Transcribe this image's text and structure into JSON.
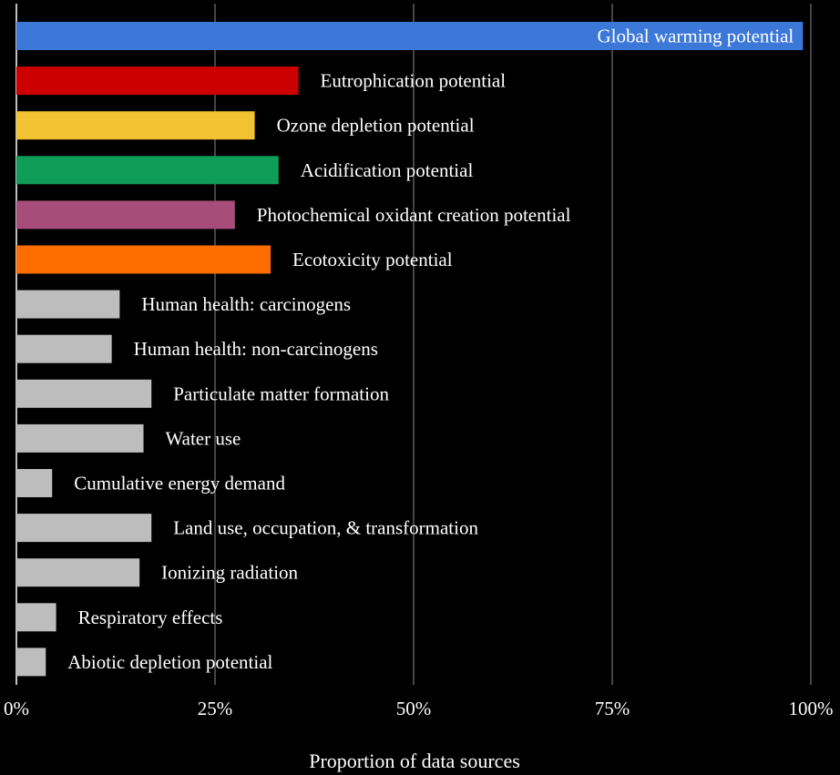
{
  "chart_data": {
    "type": "bar",
    "orientation": "horizontal",
    "title": "",
    "xlabel": "Proportion of data sources",
    "ylabel": "",
    "xlim": [
      0,
      100
    ],
    "x_ticks": [
      "0%",
      "25%",
      "50%",
      "75%",
      "100%"
    ],
    "grid": "vertical",
    "categories": [
      "Global warming potential",
      "Eutrophication potential",
      "Ozone depletion potential",
      "Acidification potential",
      "Photochemical oxidant creation potential",
      "Ecotoxicity potential",
      "Human health: carcinogens",
      "Human health: non-carcinogens",
      "Particulate matter formation",
      "Water use",
      "Cumulative energy demand",
      "Land use, occupation, & transformation",
      "Ionizing radiation",
      "Respiratory effects",
      "Abiotic depletion potential"
    ],
    "values": [
      99,
      35.5,
      30,
      33,
      27.5,
      32,
      13,
      12,
      17,
      16,
      4.5,
      17,
      15.5,
      5,
      3.7
    ],
    "colors": [
      "#3c78d8",
      "#cc0000",
      "#f1c232",
      "#0f9d58",
      "#a64d79",
      "#ff6d01",
      "#bdbdbd",
      "#bdbdbd",
      "#bdbdbd",
      "#bdbdbd",
      "#bdbdbd",
      "#bdbdbd",
      "#bdbdbd",
      "#bdbdbd",
      "#bdbdbd"
    ],
    "label_inside": [
      true,
      false,
      false,
      false,
      false,
      false,
      false,
      false,
      false,
      false,
      false,
      false,
      false,
      false,
      false
    ]
  }
}
